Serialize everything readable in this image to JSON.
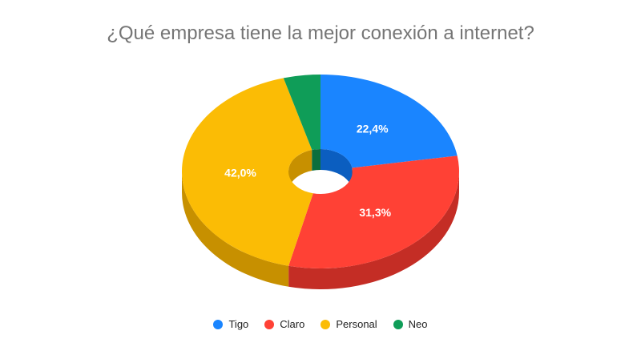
{
  "chart_data": {
    "type": "pie",
    "variant": "3d-donut",
    "title": "¿Qué empresa tiene la mejor conexión a internet?",
    "categories": [
      "Tigo",
      "Claro",
      "Personal",
      "Neo"
    ],
    "values": [
      22.4,
      31.3,
      42.0,
      4.3
    ],
    "labels": [
      "22,4%",
      "31,3%",
      "42,0%",
      ""
    ],
    "colors": [
      "#1a85ff",
      "#ff4135",
      "#fbbc05",
      "#0f9d58"
    ],
    "side_colors": [
      "#0b5ec0",
      "#c42d25",
      "#c79000",
      "#0a6e3d"
    ],
    "legend_position": "bottom"
  }
}
